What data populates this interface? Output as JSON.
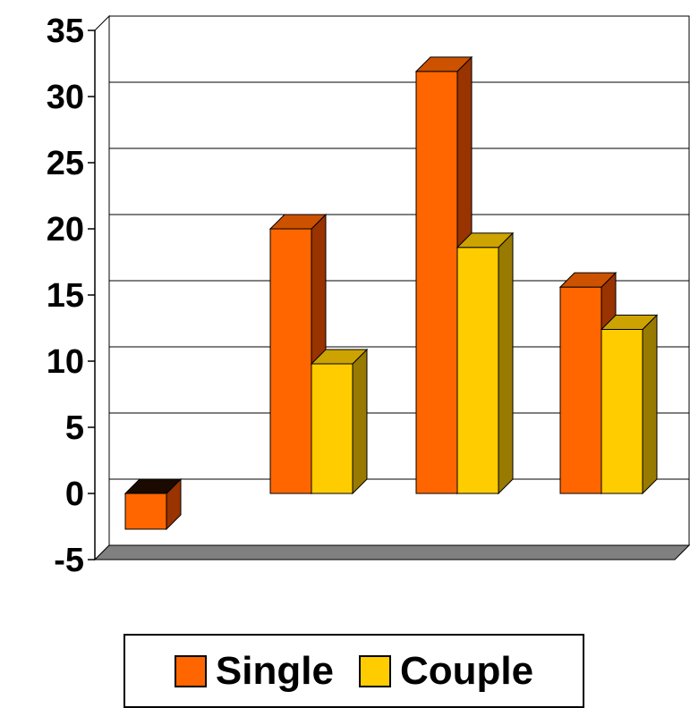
{
  "chart_data": {
    "type": "bar",
    "style": "3d-clustered-column",
    "categories": [
      "",
      "",
      "",
      ""
    ],
    "series": [
      {
        "name": "Single",
        "values": [
          -2.7,
          20,
          31.9,
          15.6
        ],
        "color": "#FF6600",
        "side_color": "#993300",
        "top_color": "#CC5200"
      },
      {
        "name": "Couple",
        "values": [
          null,
          9.8,
          18.6,
          12.4
        ],
        "color": "#FFCC00",
        "side_color": "#997A00",
        "top_color": "#CCA300"
      }
    ],
    "yticks": [
      -5,
      0,
      5,
      10,
      15,
      20,
      25,
      30,
      35
    ],
    "ylim": [
      -5,
      35
    ],
    "grid": true,
    "legend": "bottom",
    "title": "",
    "xlabel": "",
    "ylabel": ""
  }
}
